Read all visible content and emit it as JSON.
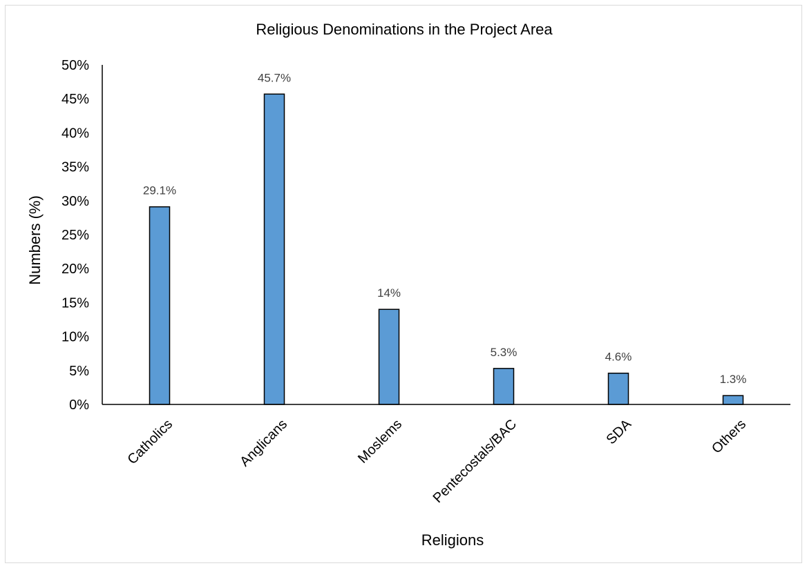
{
  "chart_data": {
    "type": "bar",
    "title": "Religious Denominations in the Project Area",
    "xlabel": "Religions",
    "ylabel": "Numbers (%)",
    "categories": [
      "Catholics",
      "Anglicans",
      "Moslems",
      "Pentecostals/BAC",
      "SDA",
      "Others"
    ],
    "values": [
      29.1,
      45.7,
      14,
      5.3,
      4.6,
      1.3
    ],
    "data_labels": [
      "29.1%",
      "45.7%",
      "14%",
      "5.3%",
      "4.6%",
      "1.3%"
    ],
    "ylim": [
      0,
      50
    ],
    "y_ticks": [
      0,
      5,
      10,
      15,
      20,
      25,
      30,
      35,
      40,
      45,
      50
    ],
    "y_tick_labels": [
      "0%",
      "5%",
      "10%",
      "15%",
      "20%",
      "25%",
      "30%",
      "35%",
      "40%",
      "45%",
      "50%"
    ],
    "grid": false,
    "legend": "none",
    "colors": {
      "bar_fill": "#5b9bd5",
      "bar_stroke": "#000000",
      "axis": "#000000",
      "data_label": "#404040"
    }
  }
}
